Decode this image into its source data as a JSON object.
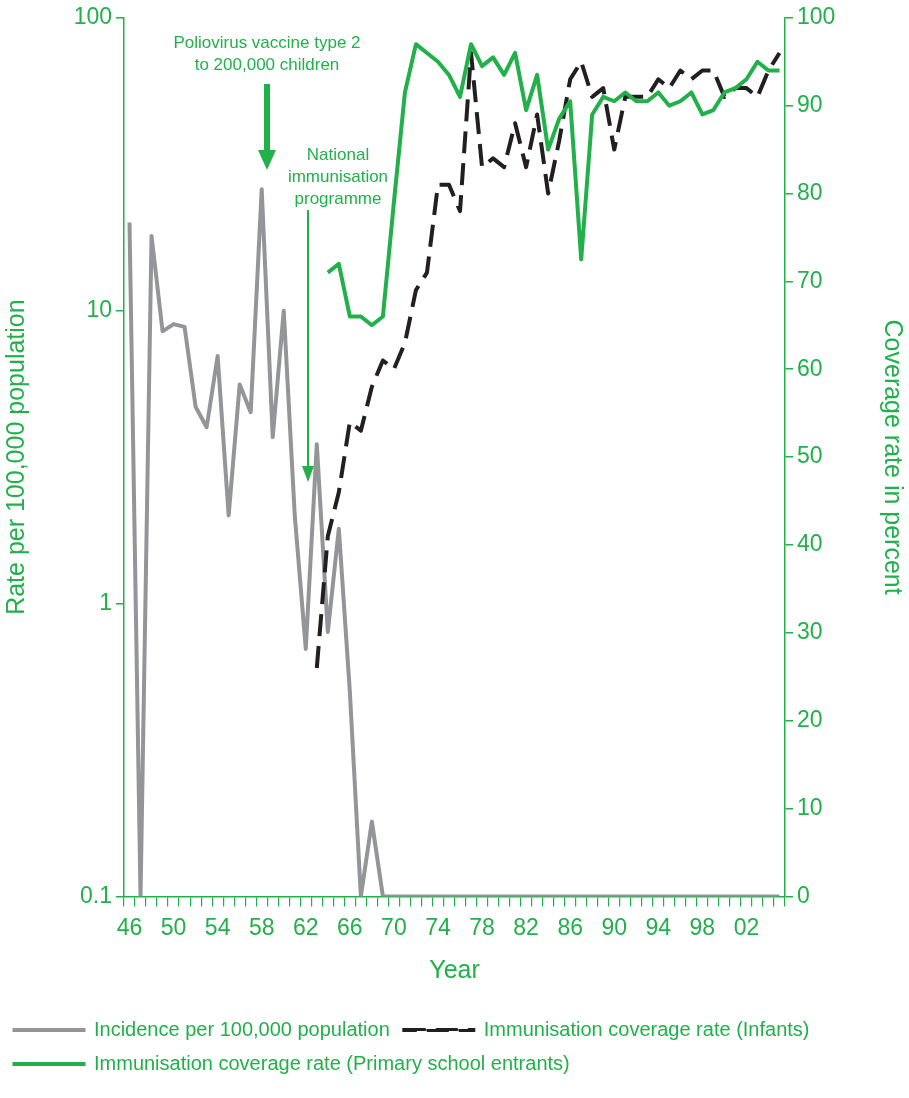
{
  "chart_data": {
    "type": "line",
    "xlabel": "Year",
    "ylabel": "Rate per 100,000 population",
    "y2label": "Coverage rate in percent",
    "categories": [
      "46",
      null,
      null,
      null,
      "50",
      null,
      null,
      null,
      "54",
      null,
      null,
      null,
      "58",
      null,
      null,
      null,
      "62",
      null,
      null,
      null,
      "66",
      null,
      null,
      null,
      "70",
      null,
      null,
      null,
      "74",
      null,
      null,
      null,
      "78",
      null,
      null,
      null,
      "82",
      null,
      null,
      null,
      "86",
      null,
      null,
      null,
      "90",
      null,
      null,
      null,
      "94",
      null,
      null,
      null,
      "98",
      null,
      null,
      null,
      "02",
      null,
      null,
      null
    ],
    "log": "y",
    "ylim": [
      0.1,
      100
    ],
    "yticks": [
      0.1,
      1,
      10,
      100
    ],
    "y2lim": [
      0,
      100
    ],
    "y2ticks": [
      0,
      10,
      20,
      30,
      40,
      50,
      60,
      70,
      80,
      90,
      100
    ],
    "grid": false,
    "legend": "bottom",
    "marker": "none",
    "series": [
      {
        "name": "Incidence per 100,000 population",
        "color": "#939598",
        "line_style": "solid",
        "values": [
          20,
          0.1,
          18,
          8.5,
          9,
          8.8,
          4.7,
          4,
          7,
          2,
          5.6,
          4.5,
          26,
          3.7,
          10,
          2,
          0.7,
          3.5,
          0.8,
          1.8,
          0.5,
          0.1,
          0.18,
          0.1,
          0.1,
          0.1,
          0.1,
          0.1,
          0.1,
          0.1,
          0.1,
          0.1,
          0.1,
          0.1,
          0.1,
          0.1,
          0.1,
          0.1,
          0.1,
          0.1,
          0.1,
          0.1,
          0.1,
          0.1,
          0.1,
          0.1,
          0.1,
          0.1,
          0.1,
          0.1,
          0.1,
          0.1,
          0.1,
          0.1,
          0.1,
          0.1,
          0.1,
          0.1,
          0.1,
          0.1
        ]
      },
      {
        "name": "Immunisation coverage rate (Infants)",
        "color": "#231f20",
        "line_style": "dashed",
        "axis": "y2",
        "values": [
          null,
          null,
          null,
          null,
          null,
          null,
          null,
          null,
          null,
          null,
          null,
          null,
          null,
          null,
          null,
          null,
          null,
          26,
          41,
          46,
          54,
          53,
          58,
          61,
          60,
          63,
          69,
          71,
          81,
          81,
          78,
          96,
          83,
          84,
          83,
          88,
          83,
          89,
          80,
          86,
          93,
          95,
          91,
          92,
          85,
          91,
          91,
          91,
          93,
          92,
          94,
          93,
          94,
          94,
          91,
          92,
          92,
          91,
          94,
          96
        ]
      },
      {
        "name": "Immunisation coverage rate (Primary school entrants)",
        "color": "#22b04b",
        "line_style": "solid",
        "axis": "y2",
        "values": [
          null,
          null,
          null,
          null,
          null,
          null,
          null,
          null,
          null,
          null,
          null,
          null,
          null,
          null,
          null,
          null,
          null,
          null,
          71,
          72,
          66,
          66,
          65,
          66,
          79,
          91.5,
          97,
          96,
          95,
          93.5,
          91,
          97,
          94.5,
          95.5,
          93.5,
          96,
          89.5,
          93.5,
          85,
          88.5,
          90.5,
          72.5,
          89,
          91,
          90.5,
          91.5,
          90.5,
          90.5,
          91.5,
          90,
          90.5,
          91.5,
          89,
          89.5,
          91.5,
          92,
          93,
          95,
          94,
          94
        ]
      }
    ],
    "annotations": [
      "Poliovirus vaccine type 2\nto 200,000 children",
      "National\nimmunisation\nprogramme"
    ]
  }
}
